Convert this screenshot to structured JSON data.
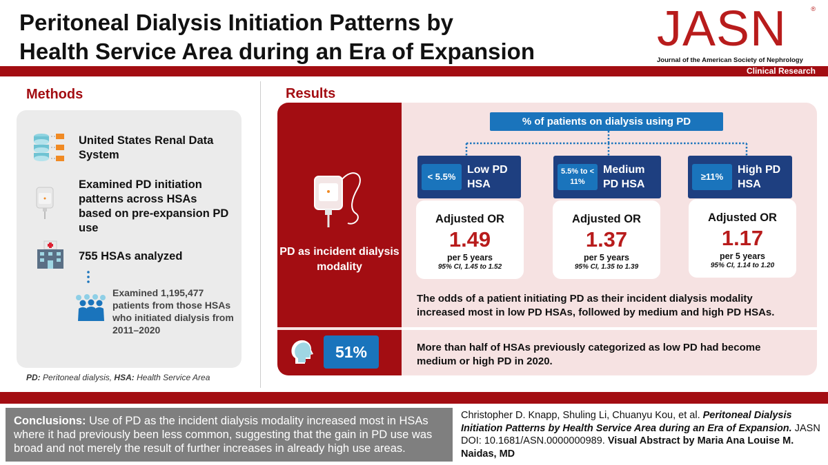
{
  "title": {
    "line1": "Peritoneal Dialysis Initiation Patterns by",
    "line2": "Health Service Area during an Era of Expansion"
  },
  "journal": {
    "logo": "JASN",
    "reg": "®",
    "subtitle": "Journal of the American Society of Nephrology",
    "section": "Clinical Research"
  },
  "methods": {
    "heading": "Methods",
    "item1": "United States Renal Data System",
    "item2": "Examined PD initiation patterns across HSAs based on pre-expansion PD use",
    "item3": "755 HSAs analyzed",
    "item4": "Examined 1,195,477 patients from those HSAs who initiated dialysis from 2011–2020"
  },
  "footnote": {
    "pd_abbr": "PD:",
    "pd_def": "Peritoneal dialysis,",
    "hsa_abbr": "HSA:",
    "hsa_def": "Health Service Area"
  },
  "results": {
    "heading": "Results",
    "side_label": "PD as incident dialysis modality",
    "pct_header": "% of patients on dialysis using PD",
    "categories": [
      {
        "range": "< 5.5%",
        "label": "Low PD HSA",
        "or_title": "Adjusted OR",
        "or_value": "1.49",
        "per": "per 5 years",
        "ci": "95% CI, 1.45 to 1.52"
      },
      {
        "range": "5.5% to < 11%",
        "label": "Medium PD HSA",
        "or_title": "Adjusted OR",
        "or_value": "1.37",
        "per": "per 5 years",
        "ci": "95% CI, 1.35 to 1.39"
      },
      {
        "range": "≥11%",
        "label": "High PD HSA",
        "or_title": "Adjusted OR",
        "or_value": "1.17",
        "per": "per 5 years",
        "ci": "95% CI, 1.14 to 1.20"
      }
    ],
    "odds_text": "The odds of a patient initiating PD as their incident dialysis modality increased most in low PD HSAs, followed by medium and high PD HSAs.",
    "pct_badge": "51%",
    "half_text": "More than half of HSAs previously categorized as low PD had become medium or high PD in 2020."
  },
  "conclusions": {
    "label": "Conclusions:",
    "text": "Use of PD as the incident dialysis modality increased most in HSAs where it had previously been less common, suggesting that the gain in PD use was broad and not merely the result of further increases in already high use areas."
  },
  "citation": {
    "authors": "Christopher D. Knapp, Shuling Li, Chuanyu Kou, et al.",
    "article_title": "Peritoneal Dialysis Initiation Patterns by Health Service Area during an Era of Expansion.",
    "doi": "JASN DOI: 10.1681/ASN.0000000989.",
    "credit": "Visual Abstract by Maria Ana Louise M. Naidas, MD"
  },
  "colors": {
    "brand_red": "#a30d12",
    "blue": "#1a74bc",
    "navy": "#1e3f80"
  }
}
